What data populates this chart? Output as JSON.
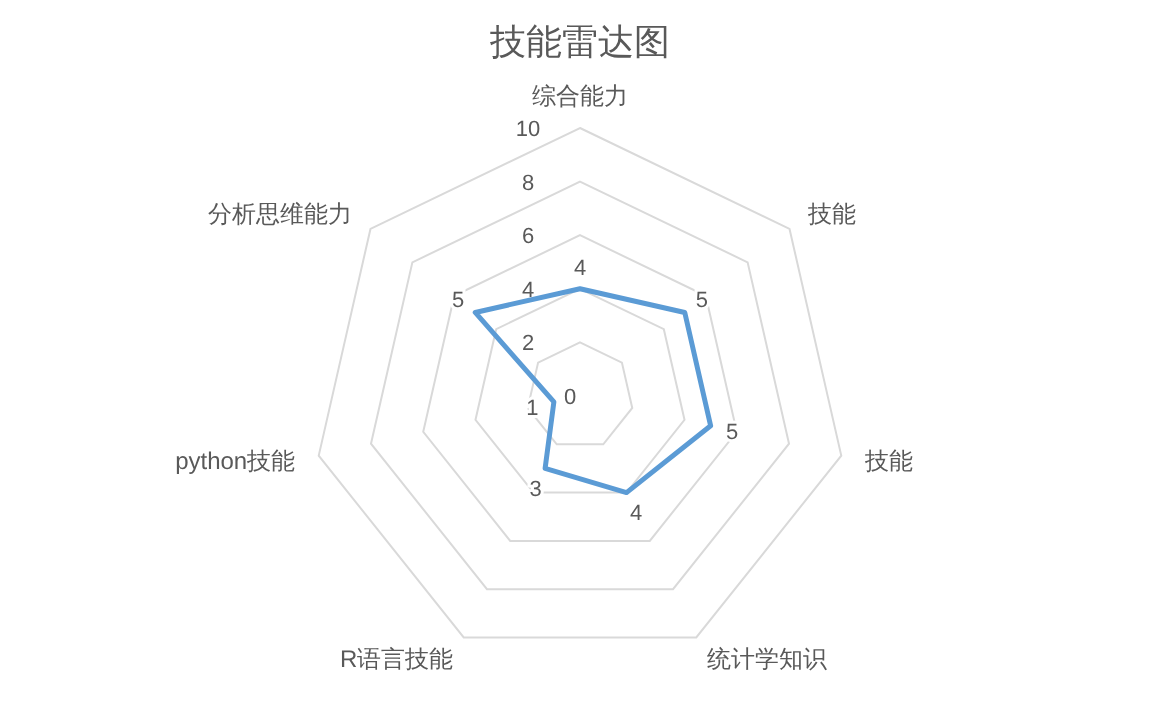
{
  "chart_data": {
    "type": "radar",
    "title": "技能雷达图",
    "categories": [
      "综合能力",
      "技能",
      "技能",
      "统计学知识",
      "R语言技能",
      "python技能",
      "分析思维能力"
    ],
    "series": [
      {
        "color": "#5b9bd5",
        "values": [
          4,
          5,
          5,
          4,
          3,
          1,
          5
        ]
      }
    ],
    "ylim": [
      0,
      10
    ],
    "yticks": [
      0,
      2,
      4,
      6,
      8,
      10
    ],
    "grid": true,
    "data_labels": true,
    "marker": "none",
    "line_style": "solid"
  }
}
